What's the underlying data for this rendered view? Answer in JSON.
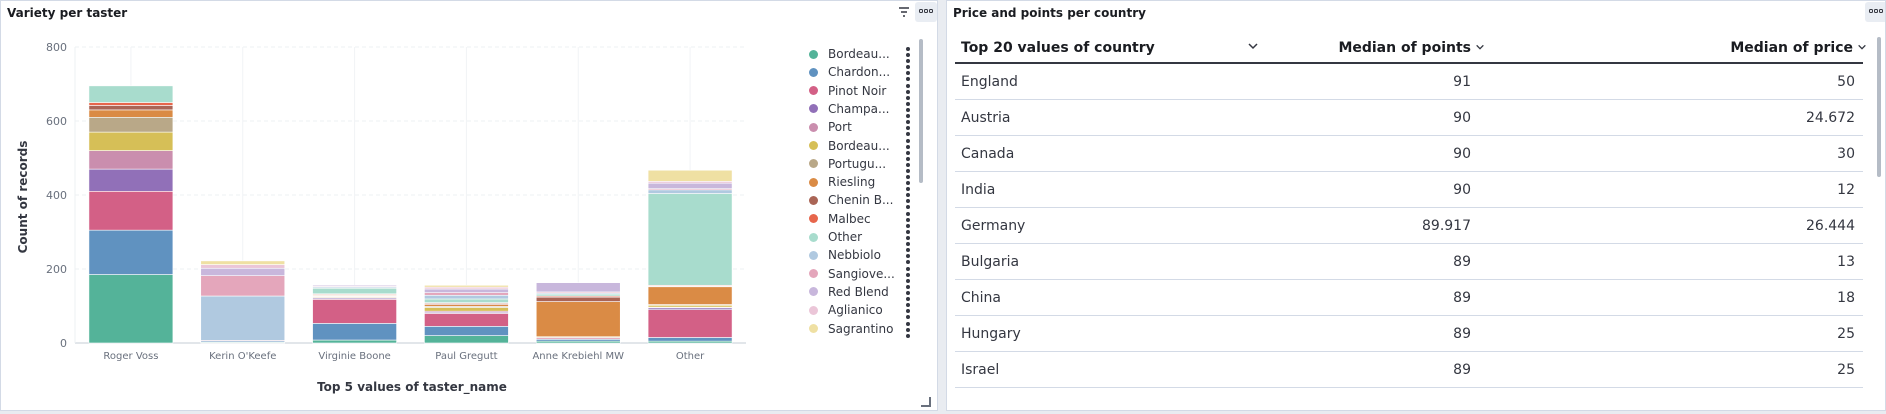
{
  "left_panel": {
    "title": "Variety per taster",
    "chart_data": {
      "type": "bar",
      "stacked": true,
      "ylabel": "Count of records",
      "xlabel": "Top 5 values of taster_name",
      "ylim": [
        0,
        800
      ],
      "yticks": [
        0,
        200,
        400,
        600,
        800
      ],
      "grid": true,
      "legend_position": "right",
      "categories": [
        "Roger Voss",
        "Kerin O'Keefe",
        "Virginie Boone",
        "Paul Gregutt",
        "Anne Krebiehl MW",
        "Other"
      ],
      "series": [
        {
          "name": "Bordeau...",
          "color": "#54b399",
          "values": [
            185,
            2,
            8,
            20,
            5,
            5
          ]
        },
        {
          "name": "Chardon...",
          "color": "#6092c0",
          "values": [
            120,
            3,
            45,
            25,
            5,
            10
          ]
        },
        {
          "name": "Pinot Noir",
          "color": "#d36086",
          "values": [
            105,
            2,
            65,
            35,
            3,
            75
          ]
        },
        {
          "name": "Champa...",
          "color": "#9170b8",
          "values": [
            60,
            0,
            3,
            3,
            2,
            5
          ]
        },
        {
          "name": "Port",
          "color": "#ca8eae",
          "values": [
            50,
            0,
            2,
            3,
            0,
            2
          ]
        },
        {
          "name": "Bordeau...",
          "color": "#d6bf57",
          "values": [
            50,
            0,
            2,
            10,
            2,
            5
          ]
        },
        {
          "name": "Portugu...",
          "color": "#b9a888",
          "values": [
            40,
            0,
            2,
            3,
            0,
            2
          ]
        },
        {
          "name": "Riesling",
          "color": "#da8b45",
          "values": [
            20,
            0,
            2,
            5,
            95,
            48
          ]
        },
        {
          "name": "Chenin B...",
          "color": "#aa6556",
          "values": [
            12,
            0,
            2,
            3,
            12,
            2
          ]
        },
        {
          "name": "Malbec",
          "color": "#e7664c",
          "values": [
            8,
            0,
            2,
            2,
            3,
            2
          ]
        },
        {
          "name": "Other",
          "color": "#a8dccd",
          "values": [
            45,
            0,
            15,
            10,
            5,
            248
          ]
        },
        {
          "name": "Nebbiolo",
          "color": "#b0c9e0",
          "values": [
            0,
            120,
            3,
            10,
            3,
            10
          ]
        },
        {
          "name": "Sangiove...",
          "color": "#e4a6bb",
          "values": [
            0,
            55,
            2,
            7,
            3,
            3
          ]
        },
        {
          "name": "Red Blend",
          "color": "#c8b7dc",
          "values": [
            0,
            20,
            3,
            10,
            25,
            15
          ]
        },
        {
          "name": "Aglianico",
          "color": "#ebc6d8",
          "values": [
            0,
            10,
            0,
            5,
            0,
            5
          ]
        },
        {
          "name": "Sagrantino",
          "color": "#efe0a3",
          "values": [
            0,
            10,
            0,
            5,
            0,
            30
          ]
        }
      ]
    }
  },
  "right_panel": {
    "title": "Price and points per country",
    "columns": [
      "Top 20 values of country",
      "Median of points",
      "Median of price"
    ],
    "rows": [
      [
        "England",
        "91",
        "50"
      ],
      [
        "Austria",
        "90",
        "24.672"
      ],
      [
        "Canada",
        "90",
        "30"
      ],
      [
        "India",
        "90",
        "12"
      ],
      [
        "Germany",
        "89.917",
        "26.444"
      ],
      [
        "Bulgaria",
        "89",
        "13"
      ],
      [
        "China",
        "89",
        "18"
      ],
      [
        "Hungary",
        "89",
        "25"
      ],
      [
        "Israel",
        "89",
        "25"
      ]
    ]
  },
  "icons": {
    "filter": "filter-icon",
    "panel_menu": "more-options-icon",
    "legend_menu": "vertical-dots-icon",
    "sort": "chevron-down-icon"
  }
}
